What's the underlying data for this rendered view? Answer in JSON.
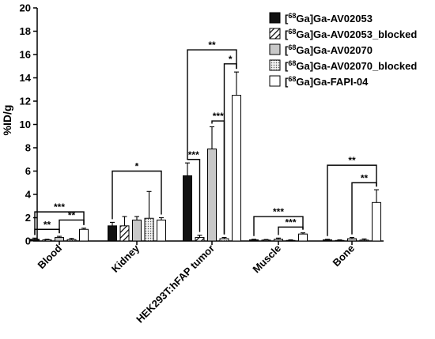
{
  "chart_data": {
    "type": "bar",
    "ylabel": "%ID/g",
    "ylim": [
      0,
      20
    ],
    "yticks": [
      0,
      2,
      4,
      6,
      8,
      10,
      12,
      14,
      16,
      18,
      20
    ],
    "grid": false,
    "legend_position": "top-right",
    "categories": [
      "Blood",
      "Kidney",
      "HEK293T:hFAP tumor",
      "Muscle",
      "Bone"
    ],
    "series": [
      {
        "name": "[68Ga]Ga-AV02053",
        "sup": "68",
        "pre": "[",
        "post": "Ga]Ga-AV02053",
        "pattern": "solid-black",
        "values": [
          0.15,
          1.3,
          5.6,
          0.1,
          0.1
        ],
        "errors": [
          0.1,
          0.3,
          1.1,
          0.05,
          0.05
        ]
      },
      {
        "name": "[68Ga]Ga-AV02053_blocked",
        "sup": "68",
        "pre": "[",
        "post": "Ga]Ga-AV02053_blocked",
        "pattern": "hatch",
        "values": [
          0.1,
          1.3,
          0.3,
          0.08,
          0.05
        ],
        "errors": [
          0.05,
          0.8,
          0.2,
          0.05,
          0.05
        ]
      },
      {
        "name": "[68Ga]Ga-AV02070",
        "sup": "68",
        "pre": "[",
        "post": "Ga]Ga-AV02070",
        "pattern": "solid-gray",
        "values": [
          0.3,
          1.8,
          7.9,
          0.15,
          0.2
        ],
        "errors": [
          0.1,
          0.3,
          1.9,
          0.1,
          0.1
        ]
      },
      {
        "name": "[68Ga]Ga-AV02070_blocked",
        "sup": "68",
        "pre": "[",
        "post": "Ga]Ga-AV02070_blocked",
        "pattern": "dotted",
        "values": [
          0.12,
          1.95,
          0.2,
          0.05,
          0.08
        ],
        "errors": [
          0.1,
          2.3,
          0.1,
          0.05,
          0.1
        ]
      },
      {
        "name": "[68Ga]Ga-FAPI-04",
        "sup": "68",
        "pre": "[",
        "post": "Ga]Ga-FAPI-04",
        "pattern": "white",
        "values": [
          1.0,
          1.8,
          12.5,
          0.6,
          3.3
        ],
        "errors": [
          0.1,
          0.2,
          2.0,
          0.1,
          1.1
        ]
      }
    ],
    "significance": [
      {
        "category": 0,
        "from": 0,
        "to": 4,
        "y": 2.5,
        "label": "***"
      },
      {
        "category": 0,
        "from": 2,
        "to": 4,
        "y": 1.8,
        "label": "**"
      },
      {
        "category": 0,
        "from": 0,
        "to": 2,
        "y": 1.0,
        "label": "**"
      },
      {
        "category": 1,
        "from": 0,
        "to": 4,
        "y": 6.0,
        "label": "*"
      },
      {
        "category": 2,
        "from": 0,
        "to": 4,
        "y": 16.4,
        "label": "**"
      },
      {
        "category": 2,
        "from": 3,
        "to": 4,
        "y": 15.2,
        "label": "*"
      },
      {
        "category": 2,
        "from": 2,
        "to": 3,
        "y": 10.3,
        "label": "***"
      },
      {
        "category": 2,
        "from": 0,
        "to": 1,
        "y": 7.0,
        "label": "***"
      },
      {
        "category": 3,
        "from": 0,
        "to": 4,
        "y": 2.1,
        "label": "***"
      },
      {
        "category": 3,
        "from": 2,
        "to": 4,
        "y": 1.2,
        "label": "***"
      },
      {
        "category": 4,
        "from": 0,
        "to": 4,
        "y": 6.5,
        "label": "**"
      },
      {
        "category": 4,
        "from": 2,
        "to": 4,
        "y": 5.0,
        "label": "**"
      }
    ]
  }
}
